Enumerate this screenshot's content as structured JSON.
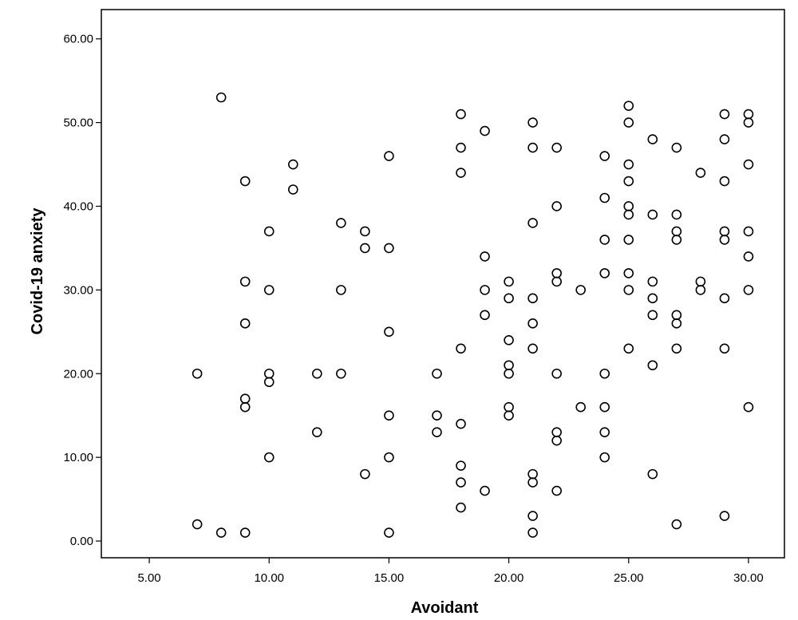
{
  "chart_data": {
    "type": "scatter",
    "title": "",
    "xlabel": "Avoidant",
    "ylabel": "Covid-19 anxiety",
    "xlim": [
      3.0,
      31.5
    ],
    "ylim": [
      -2.0,
      63.5
    ],
    "x_ticks": [
      5,
      10,
      15,
      20,
      25,
      30
    ],
    "y_ticks": [
      0,
      10,
      20,
      30,
      40,
      50,
      60
    ],
    "x_tick_labels": [
      "5.00",
      "10.00",
      "15.00",
      "20.00",
      "25.00",
      "30.00"
    ],
    "y_tick_labels": [
      "0.00",
      "10.00",
      "20.00",
      "30.00",
      "40.00",
      "50.00",
      "60.00"
    ],
    "grid": false,
    "legend": "none",
    "marker": "open-circle",
    "colors": {
      "marker": "#000000",
      "background": "#ffffff",
      "axis": "#000000"
    },
    "points": [
      [
        7,
        20
      ],
      [
        7,
        2
      ],
      [
        8,
        53
      ],
      [
        8,
        1
      ],
      [
        9,
        43
      ],
      [
        9,
        31
      ],
      [
        9,
        26
      ],
      [
        9,
        17
      ],
      [
        9,
        16
      ],
      [
        9,
        1
      ],
      [
        10,
        37
      ],
      [
        10,
        30
      ],
      [
        10,
        20
      ],
      [
        10,
        19
      ],
      [
        10,
        10
      ],
      [
        11,
        45
      ],
      [
        11,
        42
      ],
      [
        12,
        20
      ],
      [
        12,
        13
      ],
      [
        13,
        38
      ],
      [
        13,
        30
      ],
      [
        13,
        20
      ],
      [
        14,
        37
      ],
      [
        14,
        35
      ],
      [
        14,
        8
      ],
      [
        15,
        46
      ],
      [
        15,
        35
      ],
      [
        15,
        25
      ],
      [
        15,
        15
      ],
      [
        15,
        10
      ],
      [
        15,
        1
      ],
      [
        17,
        20
      ],
      [
        17,
        15
      ],
      [
        17,
        13
      ],
      [
        18,
        51
      ],
      [
        18,
        47
      ],
      [
        18,
        44
      ],
      [
        18,
        23
      ],
      [
        18,
        14
      ],
      [
        18,
        9
      ],
      [
        18,
        7
      ],
      [
        18,
        4
      ],
      [
        19,
        49
      ],
      [
        19,
        34
      ],
      [
        19,
        30
      ],
      [
        19,
        27
      ],
      [
        19,
        6
      ],
      [
        20,
        31
      ],
      [
        20,
        29
      ],
      [
        20,
        24
      ],
      [
        20,
        21
      ],
      [
        20,
        20
      ],
      [
        20,
        16
      ],
      [
        20,
        15
      ],
      [
        21,
        50
      ],
      [
        21,
        47
      ],
      [
        21,
        38
      ],
      [
        21,
        29
      ],
      [
        21,
        26
      ],
      [
        21,
        23
      ],
      [
        21,
        8
      ],
      [
        21,
        7
      ],
      [
        21,
        3
      ],
      [
        21,
        1
      ],
      [
        22,
        47
      ],
      [
        22,
        40
      ],
      [
        22,
        32
      ],
      [
        22,
        31
      ],
      [
        22,
        20
      ],
      [
        22,
        13
      ],
      [
        22,
        12
      ],
      [
        22,
        6
      ],
      [
        23,
        30
      ],
      [
        23,
        16
      ],
      [
        24,
        46
      ],
      [
        24,
        41
      ],
      [
        24,
        36
      ],
      [
        24,
        32
      ],
      [
        24,
        20
      ],
      [
        24,
        16
      ],
      [
        24,
        13
      ],
      [
        24,
        10
      ],
      [
        25,
        52
      ],
      [
        25,
        50
      ],
      [
        25,
        45
      ],
      [
        25,
        43
      ],
      [
        25,
        40
      ],
      [
        25,
        39
      ],
      [
        25,
        36
      ],
      [
        25,
        32
      ],
      [
        25,
        30
      ],
      [
        25,
        23
      ],
      [
        26,
        48
      ],
      [
        26,
        39
      ],
      [
        26,
        31
      ],
      [
        26,
        29
      ],
      [
        26,
        27
      ],
      [
        26,
        21
      ],
      [
        26,
        8
      ],
      [
        27,
        47
      ],
      [
        27,
        39
      ],
      [
        27,
        37
      ],
      [
        27,
        36
      ],
      [
        27,
        27
      ],
      [
        27,
        26
      ],
      [
        27,
        23
      ],
      [
        27,
        2
      ],
      [
        28,
        44
      ],
      [
        28,
        31
      ],
      [
        28,
        30
      ],
      [
        29,
        51
      ],
      [
        29,
        48
      ],
      [
        29,
        43
      ],
      [
        29,
        37
      ],
      [
        29,
        36
      ],
      [
        29,
        29
      ],
      [
        29,
        23
      ],
      [
        29,
        3
      ],
      [
        30,
        51
      ],
      [
        30,
        50
      ],
      [
        30,
        45
      ],
      [
        30,
        37
      ],
      [
        30,
        34
      ],
      [
        30,
        30
      ],
      [
        30,
        16
      ]
    ]
  }
}
